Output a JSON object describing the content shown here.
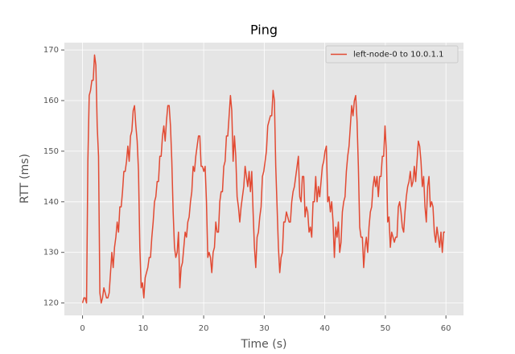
{
  "chart_data": {
    "type": "line",
    "title": "Ping",
    "xlabel": "Time (s)",
    "ylabel": "RTT (ms)",
    "x": [
      0,
      0.22,
      0.44,
      0.66,
      0.88,
      1.1,
      1.32,
      1.54,
      1.76,
      1.98,
      2.2,
      2.42,
      2.64,
      2.86,
      3.08,
      3.3,
      3.52,
      3.74,
      3.96,
      4.18,
      4.4,
      4.62,
      4.84,
      5.06,
      5.28,
      5.5,
      5.72,
      5.94,
      6.16,
      6.38,
      6.6,
      6.82,
      7.04,
      7.26,
      7.48,
      7.7,
      7.92,
      8.14,
      8.36,
      8.58,
      8.8,
      9.02,
      9.24,
      9.46,
      9.68,
      9.9,
      10.12,
      10.34,
      10.56,
      10.78,
      11,
      11.22,
      11.44,
      11.66,
      11.88,
      12.1,
      12.32,
      12.54,
      12.76,
      12.98,
      13.2,
      13.42,
      13.64,
      13.86,
      14.08,
      14.3,
      14.52,
      14.74,
      14.96,
      15.18,
      15.4,
      15.62,
      15.84,
      16.06,
      16.28,
      16.5,
      16.72,
      16.94,
      17.16,
      17.38,
      17.6,
      17.82,
      18.04,
      18.26,
      18.48,
      18.7,
      18.92,
      19.14,
      19.36,
      19.58,
      19.8,
      20.02,
      20.24,
      20.46,
      20.68,
      20.9,
      21.12,
      21.34,
      21.56,
      21.78,
      22,
      22.22,
      22.44,
      22.66,
      22.88,
      23.1,
      23.32,
      23.54,
      23.76,
      23.98,
      24.2,
      24.42,
      24.64,
      24.86,
      25.08,
      25.3,
      25.52,
      25.74,
      25.96,
      26.18,
      26.4,
      26.62,
      26.84,
      27.06,
      27.28,
      27.5,
      27.72,
      27.94,
      28.16,
      28.38,
      28.6,
      28.82,
      29.04,
      29.26,
      29.48,
      29.7,
      29.92,
      30.14,
      30.36,
      30.58,
      30.8,
      31.02,
      31.24,
      31.46,
      31.68,
      31.9,
      32.12,
      32.34,
      32.56,
      32.78,
      33,
      33.22,
      33.44,
      33.66,
      33.88,
      34.1,
      34.32,
      34.54,
      34.76,
      34.98,
      35.2,
      35.42,
      35.64,
      35.86,
      36.08,
      36.3,
      36.52,
      36.74,
      36.96,
      37.18,
      37.4,
      37.62,
      37.84,
      38.06,
      38.28,
      38.5,
      38.72,
      38.94,
      39.16,
      39.38,
      39.6,
      39.82,
      40.04,
      40.26,
      40.48,
      40.7,
      40.92,
      41.14,
      41.36,
      41.58,
      41.8,
      42.02,
      42.24,
      42.46,
      42.68,
      42.9,
      43.12,
      43.34,
      43.56,
      43.78,
      44,
      44.22,
      44.44,
      44.66,
      44.88,
      45.1,
      45.32,
      45.54,
      45.76,
      45.98,
      46.2,
      46.42,
      46.64,
      46.86,
      47.08,
      47.3,
      47.52,
      47.74,
      47.96,
      48.18,
      48.4,
      48.62,
      48.84,
      49.06,
      49.28,
      49.5,
      49.72,
      49.94,
      50.16,
      50.38,
      50.6,
      50.82,
      51.04,
      51.26,
      51.48,
      51.7,
      51.92,
      52.14,
      52.36,
      52.58,
      52.8,
      53.02,
      53.24,
      53.46,
      53.68,
      53.9,
      54.12,
      54.34,
      54.56,
      54.78,
      55,
      55.22,
      55.44,
      55.66,
      55.88,
      56.1,
      56.32,
      56.54,
      56.76,
      56.98,
      57.2,
      57.42,
      57.64,
      57.86,
      58.08,
      58.3,
      58.52,
      58.74,
      58.96,
      59.18,
      59.4,
      59.62,
      59.84
    ],
    "series": [
      {
        "name": "left-node-0 to 10.0.1.1",
        "color": "#e24a33",
        "values": [
          120,
          121,
          121,
          120,
          148,
          161,
          162,
          164,
          164,
          169,
          167,
          155,
          149,
          122,
          120,
          121,
          123,
          122,
          121,
          121,
          122,
          126,
          130,
          127,
          131,
          133,
          136,
          134,
          139,
          139,
          142,
          146,
          146,
          148,
          151,
          148,
          153,
          154,
          158,
          159,
          155,
          152,
          146,
          131,
          123,
          124,
          121,
          125,
          126,
          127,
          129,
          129,
          133,
          136,
          140,
          141,
          144,
          144,
          149,
          149,
          153,
          155,
          152,
          156,
          159,
          159,
          155,
          148,
          138,
          131,
          129,
          130,
          134,
          123,
          127,
          128,
          131,
          134,
          133,
          136,
          137,
          140,
          142,
          147,
          146,
          149,
          151,
          153,
          153,
          147,
          147,
          146,
          147,
          140,
          129,
          130,
          129,
          126,
          130,
          131,
          136,
          134,
          134,
          140,
          142,
          142,
          147,
          148,
          153,
          153,
          157,
          161,
          158,
          148,
          153,
          149,
          141,
          139,
          136,
          139,
          141,
          143,
          147,
          145,
          143,
          146,
          142,
          146,
          138,
          131,
          127,
          133,
          134,
          137,
          139,
          145,
          146,
          148,
          150,
          155,
          156,
          157,
          157,
          162,
          160,
          147,
          139,
          131,
          126,
          129,
          130,
          136,
          136,
          138,
          137,
          136,
          136,
          140,
          142,
          143,
          145,
          147,
          149,
          141,
          140,
          145,
          145,
          137,
          139,
          138,
          134,
          135,
          133,
          140,
          140,
          145,
          140,
          143,
          141,
          144,
          147,
          148,
          150,
          151,
          140,
          141,
          138,
          140,
          136,
          129,
          135,
          133,
          136,
          130,
          132,
          138,
          140,
          141,
          146,
          149,
          151,
          155,
          159,
          157,
          160,
          161,
          156,
          147,
          135,
          133,
          133,
          127,
          131,
          133,
          130,
          135,
          138,
          139,
          143,
          145,
          143,
          145,
          141,
          145,
          145,
          149,
          149,
          155,
          150,
          136,
          137,
          131,
          134,
          133,
          132,
          133,
          133,
          139,
          140,
          138,
          135,
          134,
          138,
          141,
          143,
          144,
          146,
          143,
          144,
          147,
          144,
          148,
          152,
          151,
          148,
          143,
          145,
          139,
          136,
          143,
          145,
          139,
          140,
          139,
          134,
          132,
          135,
          133,
          131,
          134,
          130,
          134,
          134
        ]
      }
    ],
    "xlim": [
      -3,
      62.9
    ],
    "ylim": [
      117.55,
      171.45
    ],
    "xticks": [
      0,
      10,
      20,
      30,
      40,
      50,
      60
    ],
    "yticks": [
      120,
      130,
      140,
      150,
      160,
      170
    ],
    "grid": true,
    "legend": "upper right"
  }
}
